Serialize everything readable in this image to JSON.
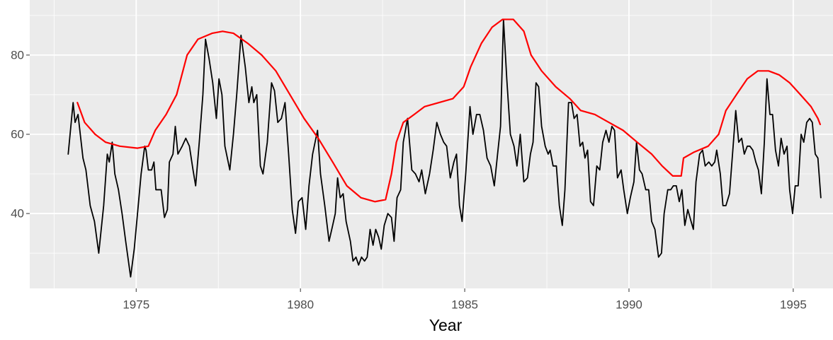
{
  "chart_data": {
    "type": "line",
    "xlabel": "Year",
    "xlim": [
      1971.76,
      1996.21
    ],
    "ylim": [
      21.1,
      93.9
    ],
    "xticks": [
      1975,
      1980,
      1985,
      1990,
      1995
    ],
    "yticks": [
      40,
      60,
      80
    ],
    "grid": true,
    "series": [
      {
        "color": "#000000",
        "x": [
          1972.93,
          1973.08,
          1973.14,
          1973.23,
          1973.38,
          1973.47,
          1973.6,
          1973.73,
          1973.86,
          1974.01,
          1974.12,
          1974.18,
          1974.27,
          1974.35,
          1974.46,
          1974.57,
          1974.68,
          1974.83,
          1974.94,
          1975.04,
          1975.15,
          1975.26,
          1975.3,
          1975.37,
          1975.47,
          1975.54,
          1975.6,
          1975.76,
          1975.86,
          1975.95,
          1976.01,
          1976.12,
          1976.19,
          1976.27,
          1976.4,
          1976.51,
          1976.62,
          1976.73,
          1976.81,
          1976.92,
          1977.03,
          1977.11,
          1977.22,
          1977.33,
          1977.44,
          1977.52,
          1977.61,
          1977.7,
          1977.85,
          1977.96,
          1978.06,
          1978.19,
          1978.32,
          1978.43,
          1978.52,
          1978.58,
          1978.67,
          1978.78,
          1978.86,
          1978.99,
          1979.12,
          1979.21,
          1979.31,
          1979.42,
          1979.53,
          1979.64,
          1979.75,
          1979.85,
          1979.94,
          1980.05,
          1980.16,
          1980.26,
          1980.37,
          1980.52,
          1980.61,
          1980.74,
          1980.87,
          1980.98,
          1981.06,
          1981.13,
          1981.21,
          1981.3,
          1981.39,
          1981.52,
          1981.6,
          1981.69,
          1981.77,
          1981.86,
          1981.95,
          1982.03,
          1982.12,
          1982.21,
          1982.29,
          1982.38,
          1982.46,
          1982.55,
          1982.66,
          1982.77,
          1982.85,
          1982.94,
          1983.05,
          1983.13,
          1983.26,
          1983.39,
          1983.5,
          1983.61,
          1983.69,
          1983.8,
          1983.93,
          1984.04,
          1984.15,
          1984.26,
          1984.36,
          1984.45,
          1984.56,
          1984.67,
          1984.75,
          1984.84,
          1984.92,
          1985.03,
          1985.16,
          1985.25,
          1985.36,
          1985.46,
          1985.57,
          1985.68,
          1985.79,
          1985.9,
          1986.0,
          1986.09,
          1986.18,
          1986.28,
          1986.39,
          1986.5,
          1986.59,
          1986.69,
          1986.8,
          1986.91,
          1987.0,
          1987.08,
          1987.17,
          1987.25,
          1987.34,
          1987.45,
          1987.54,
          1987.6,
          1987.69,
          1987.79,
          1987.88,
          1987.97,
          1988.05,
          1988.16,
          1988.25,
          1988.33,
          1988.42,
          1988.51,
          1988.59,
          1988.66,
          1988.74,
          1988.83,
          1988.92,
          1989.02,
          1989.11,
          1989.2,
          1989.3,
          1989.39,
          1989.48,
          1989.56,
          1989.65,
          1989.76,
          1989.84,
          1989.95,
          1990.04,
          1990.15,
          1990.23,
          1990.32,
          1990.4,
          1990.51,
          1990.6,
          1990.69,
          1990.79,
          1990.9,
          1990.99,
          1991.07,
          1991.18,
          1991.27,
          1991.35,
          1991.44,
          1991.53,
          1991.61,
          1991.7,
          1991.79,
          1991.89,
          1991.96,
          1992.04,
          1992.15,
          1992.24,
          1992.32,
          1992.43,
          1992.52,
          1992.61,
          1992.67,
          1992.78,
          1992.86,
          1992.95,
          1993.06,
          1993.17,
          1993.25,
          1993.34,
          1993.43,
          1993.51,
          1993.6,
          1993.68,
          1993.77,
          1993.86,
          1993.94,
          1994.03,
          1994.12,
          1994.2,
          1994.29,
          1994.37,
          1994.46,
          1994.55,
          1994.63,
          1994.72,
          1994.81,
          1994.89,
          1994.98,
          1995.06,
          1995.15,
          1995.24,
          1995.32,
          1995.41,
          1995.5,
          1995.58,
          1995.67,
          1995.75,
          1995.84
        ],
        "values": [
          55,
          68,
          63,
          65,
          54,
          51,
          42,
          38,
          30,
          42,
          55,
          53,
          58,
          50,
          46,
          40,
          33,
          24,
          31,
          40,
          50,
          57,
          56,
          51,
          51,
          53,
          46,
          46,
          39,
          41,
          53,
          55,
          62,
          55,
          57,
          59,
          57,
          51,
          47,
          58,
          70,
          84,
          79,
          73,
          64,
          74,
          70,
          57,
          51,
          60,
          70,
          85,
          77,
          68,
          72,
          68,
          70,
          52,
          50,
          58,
          73,
          71,
          63,
          64,
          68,
          55,
          41,
          35,
          43,
          44,
          36,
          47,
          55,
          61,
          50,
          42,
          33,
          37,
          40,
          49,
          44,
          45,
          38,
          33,
          28,
          29,
          27,
          29,
          28,
          29,
          36,
          32,
          36,
          34,
          31,
          37,
          40,
          39,
          33,
          44,
          46,
          58,
          64,
          51,
          50,
          48,
          51,
          45,
          50,
          56,
          63,
          60,
          58,
          57,
          49,
          53,
          55,
          42,
          38,
          50,
          67,
          60,
          65,
          65,
          61,
          54,
          52,
          47,
          55,
          62,
          89,
          74,
          60,
          57,
          52,
          60,
          48,
          49,
          55,
          58,
          73,
          72,
          62,
          57,
          55,
          56,
          52,
          52,
          42,
          37,
          46,
          68,
          68,
          64,
          65,
          57,
          58,
          54,
          56,
          43,
          42,
          52,
          51,
          58,
          61,
          58,
          62,
          61,
          49,
          51,
          46,
          40,
          44,
          48,
          58,
          51,
          50,
          46,
          46,
          38,
          36,
          29,
          30,
          40,
          46,
          46,
          47,
          47,
          43,
          46,
          37,
          41,
          38,
          36,
          48,
          55,
          56,
          52,
          53,
          52,
          53,
          56,
          50,
          42,
          42,
          45,
          57,
          66,
          58,
          59,
          55,
          57,
          57,
          56,
          53,
          51,
          45,
          58,
          74,
          65,
          65,
          56,
          52,
          59,
          55,
          57,
          46,
          40,
          47,
          47,
          60,
          58,
          63,
          64,
          63,
          55,
          54,
          44
        ]
      },
      {
        "color": "#ff0000",
        "x": [
          1973.21,
          1973.43,
          1973.75,
          1974.07,
          1974.5,
          1975.04,
          1975.37,
          1975.58,
          1975.91,
          1976.23,
          1976.55,
          1976.88,
          1977.31,
          1977.63,
          1977.96,
          1978.39,
          1978.82,
          1979.25,
          1979.68,
          1980.11,
          1980.54,
          1980.98,
          1981.41,
          1981.84,
          1982.27,
          1982.59,
          1982.77,
          1982.92,
          1983.13,
          1983.46,
          1983.78,
          1984.21,
          1984.64,
          1984.97,
          1985.18,
          1985.51,
          1985.83,
          1986.15,
          1986.48,
          1986.8,
          1987.02,
          1987.34,
          1987.77,
          1988.2,
          1988.53,
          1988.96,
          1989.39,
          1989.82,
          1990.25,
          1990.69,
          1991.01,
          1991.33,
          1991.59,
          1991.66,
          1991.98,
          1992.41,
          1992.73,
          1992.95,
          1993.27,
          1993.6,
          1993.92,
          1994.25,
          1994.57,
          1994.89,
          1995.22,
          1995.54,
          1995.75,
          1995.82
        ],
        "values": [
          68,
          63,
          60,
          58,
          57,
          56.5,
          57,
          61,
          65,
          70,
          80,
          84,
          85.5,
          86,
          85.5,
          83,
          80,
          76,
          70,
          64,
          59,
          53,
          47,
          44,
          43,
          43.5,
          50,
          58,
          63,
          65,
          67,
          68,
          69,
          72,
          77,
          83,
          87,
          89,
          89,
          86,
          80,
          76,
          72,
          69,
          66,
          65,
          63,
          61,
          58,
          55,
          52,
          49.5,
          49.5,
          54,
          55.5,
          57,
          60,
          66,
          70,
          74,
          76,
          76,
          75,
          73,
          70,
          67,
          64,
          62.5
        ]
      }
    ]
  }
}
